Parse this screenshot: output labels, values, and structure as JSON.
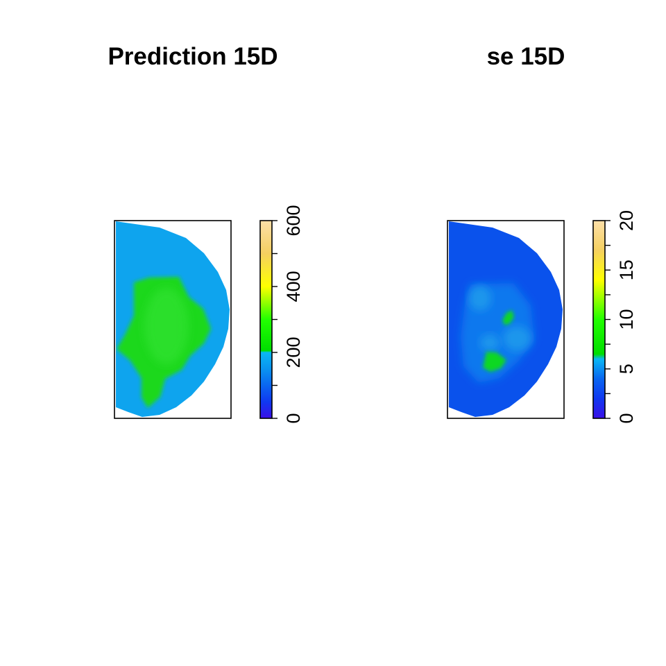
{
  "chart_data": [
    {
      "type": "heatmap",
      "title": "Prediction 15D",
      "xlabel": "",
      "ylabel": "",
      "colorbar": {
        "range": [
          0,
          600
        ],
        "ticks": [
          0,
          100,
          200,
          300,
          400,
          500,
          600
        ],
        "tick_labels": [
          "0",
          "200",
          "400",
          "600"
        ],
        "colors": [
          {
            "value": 0,
            "color": "#3a10e8"
          },
          {
            "value": 50,
            "color": "#1038f0"
          },
          {
            "value": 100,
            "color": "#0a66f0"
          },
          {
            "value": 150,
            "color": "#0a94f0"
          },
          {
            "value": 200,
            "color": "#0ab8f5"
          },
          {
            "value": 205,
            "color": "#00dd00"
          },
          {
            "value": 300,
            "color": "#22ff00"
          },
          {
            "value": 400,
            "color": "#ffff00"
          },
          {
            "value": 500,
            "color": "#f5d060"
          },
          {
            "value": 600,
            "color": "#fcdfa8"
          }
        ]
      },
      "map_colors": {
        "outer": "#0ea4ee",
        "mid": "#0aa0f0",
        "core": "#1bd81b",
        "core_light": "#33e233"
      }
    },
    {
      "type": "heatmap",
      "title": "se 15D",
      "xlabel": "",
      "ylabel": "",
      "colorbar": {
        "range": [
          0,
          20
        ],
        "ticks": [
          0,
          2.5,
          5,
          7.5,
          10,
          12.5,
          15,
          17.5,
          20
        ],
        "tick_labels": [
          "0",
          "5",
          "10",
          "15",
          "20"
        ],
        "colors": [
          {
            "value": 0,
            "color": "#3a10e8"
          },
          {
            "value": 2,
            "color": "#1038f0"
          },
          {
            "value": 4,
            "color": "#0a66f0"
          },
          {
            "value": 6,
            "color": "#0ab8f5"
          },
          {
            "value": 6.5,
            "color": "#00dd00"
          },
          {
            "value": 10,
            "color": "#22ff00"
          },
          {
            "value": 14,
            "color": "#ffff00"
          },
          {
            "value": 17,
            "color": "#f5d060"
          },
          {
            "value": 20,
            "color": "#fcdfa8"
          }
        ]
      },
      "map_colors": {
        "outer": "#0a52ec",
        "mid": "#0a78ee",
        "light": "#1a96ec",
        "core": "#10d820"
      }
    }
  ]
}
